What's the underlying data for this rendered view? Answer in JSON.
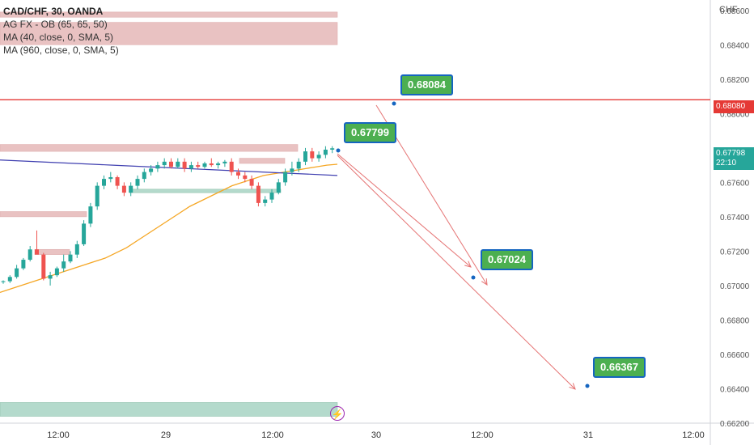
{
  "header": {
    "symbol_line": "CAD/CHF, 30, OANDA",
    "indicators": [
      "AG FX - OB (65, 65, 50)",
      "MA (40, close, 0, SMA, 5)",
      "MA (960, close, 0, SMA, 5)"
    ]
  },
  "axis": {
    "unit": "CHF",
    "y_ticks": [
      "0.68600",
      "0.68400",
      "0.68200",
      "0.68000",
      "0.67600",
      "0.67400",
      "0.67200",
      "0.67000",
      "0.66800",
      "0.66600",
      "0.66400",
      "0.66200"
    ],
    "x_ticks": [
      "12:00",
      "29",
      "12:00",
      "30",
      "12:00",
      "31",
      "12:00"
    ]
  },
  "price_tags": {
    "resistance": "0.68080",
    "current": "0.67798",
    "countdown": "22:10"
  },
  "callouts": [
    "0.68084",
    "0.67799",
    "0.67024",
    "0.66367"
  ],
  "colors": {
    "bull": "#26a69a",
    "bear": "#ef5350",
    "ma40": "#f5a623",
    "ma960": "#3f3fb0",
    "resistance": "#e53935",
    "ob_bear": "#e6b8b8",
    "ob_bull": "#a8d4c4",
    "callout_bg": "#4caf50",
    "callout_border": "#1565c0"
  },
  "chart_data": {
    "type": "candlestick",
    "symbol": "CAD/CHF",
    "timeframe": "30",
    "ylim": [
      0.662,
      0.6866
    ],
    "resistance_level": 0.6808,
    "current_price": 0.67798,
    "candles_ohlc": [
      [
        0.6702,
        0.6703,
        0.6701,
        0.67025
      ],
      [
        0.67025,
        0.6706,
        0.67015,
        0.6705
      ],
      [
        0.6705,
        0.6712,
        0.6704,
        0.671
      ],
      [
        0.671,
        0.6716,
        0.6709,
        0.6715
      ],
      [
        0.6715,
        0.6723,
        0.6714,
        0.6721
      ],
      [
        0.6721,
        0.6732,
        0.672,
        0.6718
      ],
      [
        0.6718,
        0.6719,
        0.6703,
        0.6704
      ],
      [
        0.6704,
        0.6708,
        0.67,
        0.6706
      ],
      [
        0.6706,
        0.6711,
        0.6705,
        0.671
      ],
      [
        0.671,
        0.6718,
        0.6708,
        0.6714
      ],
      [
        0.6714,
        0.672,
        0.6713,
        0.6718
      ],
      [
        0.6718,
        0.6726,
        0.6716,
        0.6724
      ],
      [
        0.6724,
        0.6738,
        0.6723,
        0.6736
      ],
      [
        0.6736,
        0.6748,
        0.6734,
        0.6746
      ],
      [
        0.6746,
        0.676,
        0.6744,
        0.6758
      ],
      [
        0.6758,
        0.6764,
        0.6756,
        0.6762
      ],
      [
        0.6762,
        0.6766,
        0.676,
        0.6763
      ],
      [
        0.6763,
        0.6764,
        0.6756,
        0.6758
      ],
      [
        0.6758,
        0.676,
        0.6752,
        0.6754
      ],
      [
        0.6754,
        0.676,
        0.6752,
        0.6758
      ],
      [
        0.6758,
        0.6764,
        0.6756,
        0.6762
      ],
      [
        0.6762,
        0.6768,
        0.676,
        0.6766
      ],
      [
        0.6766,
        0.677,
        0.6764,
        0.6768
      ],
      [
        0.6768,
        0.6772,
        0.6766,
        0.677
      ],
      [
        0.677,
        0.6774,
        0.6768,
        0.6772
      ],
      [
        0.6772,
        0.6774,
        0.6768,
        0.6769
      ],
      [
        0.6769,
        0.6774,
        0.6768,
        0.6772
      ],
      [
        0.6772,
        0.6774,
        0.6766,
        0.6768
      ],
      [
        0.6768,
        0.6772,
        0.6766,
        0.677
      ],
      [
        0.677,
        0.6772,
        0.6768,
        0.6769
      ],
      [
        0.6769,
        0.6772,
        0.6768,
        0.6771
      ],
      [
        0.6771,
        0.6774,
        0.6769,
        0.677
      ],
      [
        0.677,
        0.6772,
        0.6768,
        0.6771
      ],
      [
        0.6771,
        0.6773,
        0.6769,
        0.6772
      ],
      [
        0.6772,
        0.6774,
        0.6764,
        0.6766
      ],
      [
        0.6766,
        0.6768,
        0.6762,
        0.6764
      ],
      [
        0.6764,
        0.6766,
        0.676,
        0.6762
      ],
      [
        0.6762,
        0.6764,
        0.6756,
        0.6758
      ],
      [
        0.6758,
        0.676,
        0.6746,
        0.6748
      ],
      [
        0.6748,
        0.6752,
        0.6746,
        0.675
      ],
      [
        0.675,
        0.6756,
        0.6748,
        0.6754
      ],
      [
        0.6754,
        0.6762,
        0.6753,
        0.676
      ],
      [
        0.676,
        0.6768,
        0.6758,
        0.6766
      ],
      [
        0.6766,
        0.6772,
        0.6764,
        0.6768
      ],
      [
        0.6768,
        0.6774,
        0.6766,
        0.6772
      ],
      [
        0.6772,
        0.678,
        0.677,
        0.6778
      ],
      [
        0.6778,
        0.678,
        0.6772,
        0.6774
      ],
      [
        0.6774,
        0.6778,
        0.6772,
        0.6776
      ],
      [
        0.6776,
        0.6781,
        0.6774,
        0.6779
      ],
      [
        0.6779,
        0.6781,
        0.6777,
        0.67798
      ]
    ],
    "ma40": [
      0.6696,
      0.6698,
      0.67,
      0.6702,
      0.6704,
      0.6706,
      0.6708,
      0.671,
      0.6712,
      0.6714,
      0.6716,
      0.6719,
      0.6722,
      0.6726,
      0.673,
      0.6734,
      0.6738,
      0.6742,
      0.6746,
      0.6749,
      0.6752,
      0.6755,
      0.6758,
      0.676,
      0.6762,
      0.6764,
      0.6765,
      0.6766,
      0.6767,
      0.6768,
      0.6769,
      0.677,
      0.67705
    ],
    "ma960": [
      0.6773,
      0.6772,
      0.6771,
      0.677,
      0.6769,
      0.6768,
      0.6767,
      0.6766,
      0.6765,
      0.6764
    ],
    "order_blocks": [
      {
        "kind": "bear",
        "from": 0.6859,
        "to": 0.6856
      },
      {
        "kind": "bear",
        "from": 0.6853,
        "to": 0.684
      },
      {
        "kind": "bear",
        "from": 0.6782,
        "to": 0.6778
      },
      {
        "kind": "bear",
        "from": 0.6743,
        "to": 0.674
      },
      {
        "kind": "bear",
        "from": 0.6721,
        "to": 0.6718
      },
      {
        "kind": "bear",
        "from": 0.6774,
        "to": 0.6771
      },
      {
        "kind": "bull",
        "from": 0.6756,
        "to": 0.6754
      },
      {
        "kind": "bull",
        "from": 0.6632,
        "to": 0.6624
      }
    ],
    "projection_targets": [
      0.68084,
      0.67799,
      0.67024,
      0.66367
    ]
  }
}
